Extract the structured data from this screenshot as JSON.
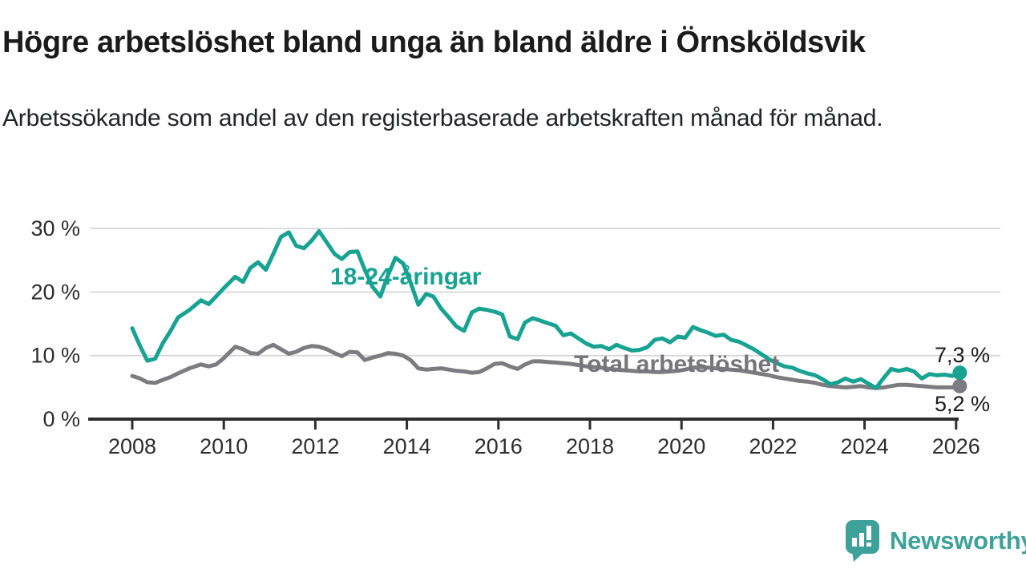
{
  "header": {
    "title": "Högre arbetslöshet bland unga än bland äldre i Örnsköldsvik",
    "subtitle": "Arbetssökande som andel av den registerbaserade arbetskraften månad för månad."
  },
  "chart_data": {
    "type": "line",
    "title": "Högre arbetslöshet bland unga än bland äldre i Örnsköldsvik",
    "subtitle": "Arbetssökande som andel av den registerbaserade arbetskraften månad för månad.",
    "unit": "%",
    "xlabel": "",
    "ylabel": "",
    "ylim": [
      0,
      30
    ],
    "xlim": [
      2008,
      2026.2
    ],
    "grid": "horizontal",
    "legend_position": "inline-labels-on-chart",
    "yticks": [
      {
        "value": 0,
        "label": "0 %"
      },
      {
        "value": 10,
        "label": "10 %"
      },
      {
        "value": 20,
        "label": "20 %"
      },
      {
        "value": 30,
        "label": "30 %"
      }
    ],
    "xticks": [
      {
        "value": 2008,
        "label": "2008"
      },
      {
        "value": 2010,
        "label": "2010"
      },
      {
        "value": 2012,
        "label": "2012"
      },
      {
        "value": 2014,
        "label": "2014"
      },
      {
        "value": 2016,
        "label": "2016"
      },
      {
        "value": 2018,
        "label": "2018"
      },
      {
        "value": 2020,
        "label": "2020"
      },
      {
        "value": 2022,
        "label": "2022"
      },
      {
        "value": 2024,
        "label": "2024"
      },
      {
        "value": 2026,
        "label": "2026"
      }
    ],
    "x": [
      2008.0,
      2008.17,
      2008.33,
      2008.5,
      2008.67,
      2008.83,
      2009.0,
      2009.25,
      2009.5,
      2009.67,
      2009.83,
      2010.0,
      2010.25,
      2010.42,
      2010.58,
      2010.75,
      2010.92,
      2011.08,
      2011.25,
      2011.42,
      2011.58,
      2011.75,
      2011.92,
      2012.08,
      2012.25,
      2012.42,
      2012.58,
      2012.75,
      2012.92,
      2013.08,
      2013.25,
      2013.42,
      2013.58,
      2013.75,
      2013.92,
      2014.08,
      2014.25,
      2014.42,
      2014.58,
      2014.75,
      2014.92,
      2015.08,
      2015.25,
      2015.42,
      2015.58,
      2015.75,
      2015.92,
      2016.08,
      2016.25,
      2016.42,
      2016.58,
      2016.75,
      2016.92,
      2017.08,
      2017.25,
      2017.42,
      2017.58,
      2017.75,
      2017.92,
      2018.08,
      2018.25,
      2018.42,
      2018.58,
      2018.75,
      2018.92,
      2019.08,
      2019.25,
      2019.42,
      2019.58,
      2019.75,
      2019.92,
      2020.08,
      2020.25,
      2020.42,
      2020.58,
      2020.75,
      2020.92,
      2021.08,
      2021.25,
      2021.42,
      2021.58,
      2021.75,
      2021.92,
      2022.08,
      2022.25,
      2022.42,
      2022.58,
      2022.75,
      2022.92,
      2023.08,
      2023.25,
      2023.42,
      2023.58,
      2023.75,
      2023.92,
      2024.08,
      2024.25,
      2024.42,
      2024.58,
      2024.75,
      2024.92,
      2025.08,
      2025.25,
      2025.42,
      2025.58,
      2025.75,
      2025.92,
      2026.08
    ],
    "series": [
      {
        "name": "18-24-åringar",
        "color": "#17a292",
        "end_label": "7,3 %",
        "end_value": 7.3,
        "values": [
          14.3,
          11.5,
          9.2,
          9.5,
          12.0,
          13.8,
          16.0,
          17.2,
          18.7,
          18.1,
          19.3,
          20.6,
          22.4,
          21.6,
          23.8,
          24.7,
          23.5,
          26.0,
          28.7,
          29.4,
          27.3,
          26.9,
          28.1,
          29.6,
          27.8,
          26.0,
          25.2,
          26.3,
          26.4,
          23.5,
          20.8,
          19.3,
          22.5,
          25.4,
          24.5,
          21.5,
          18.0,
          19.7,
          19.3,
          17.4,
          16.0,
          14.6,
          13.9,
          16.8,
          17.4,
          17.2,
          16.9,
          16.5,
          13.0,
          12.6,
          15.2,
          15.9,
          15.5,
          15.1,
          14.7,
          13.2,
          13.5,
          12.7,
          11.9,
          11.4,
          11.5,
          11.0,
          11.7,
          11.2,
          10.8,
          10.9,
          11.3,
          12.5,
          12.7,
          12.1,
          13.0,
          12.8,
          14.5,
          14.0,
          13.6,
          13.1,
          13.3,
          12.5,
          12.2,
          11.6,
          11.0,
          10.2,
          9.4,
          8.8,
          8.3,
          8.1,
          7.6,
          7.2,
          6.9,
          6.3,
          5.5,
          5.8,
          6.4,
          5.9,
          6.3,
          5.6,
          4.9,
          6.5,
          7.9,
          7.6,
          7.9,
          7.5,
          6.4,
          7.1,
          6.9,
          7.0,
          6.8,
          7.3
        ]
      },
      {
        "name": "Total arbetslöshet",
        "color": "#7c7c80",
        "end_label": "5,2 %",
        "end_value": 5.2,
        "values": [
          6.8,
          6.4,
          5.8,
          5.7,
          6.2,
          6.6,
          7.2,
          8.0,
          8.6,
          8.3,
          8.6,
          9.6,
          11.4,
          11.0,
          10.4,
          10.3,
          11.2,
          11.7,
          11.0,
          10.3,
          10.6,
          11.2,
          11.5,
          11.4,
          11.0,
          10.4,
          9.9,
          10.6,
          10.5,
          9.3,
          9.7,
          10.0,
          10.4,
          10.3,
          10.0,
          9.3,
          8.0,
          7.8,
          7.9,
          8.0,
          7.8,
          7.6,
          7.5,
          7.3,
          7.4,
          8.0,
          8.7,
          8.8,
          8.3,
          7.9,
          8.6,
          9.1,
          9.1,
          9.0,
          8.9,
          8.8,
          8.7,
          8.5,
          8.3,
          8.2,
          8.1,
          7.9,
          7.8,
          7.7,
          7.6,
          7.5,
          7.5,
          7.4,
          7.4,
          7.5,
          7.6,
          7.8,
          8.1,
          8.2,
          8.1,
          8.0,
          7.9,
          7.8,
          7.7,
          7.5,
          7.3,
          7.1,
          6.9,
          6.6,
          6.4,
          6.2,
          6.0,
          5.9,
          5.7,
          5.4,
          5.2,
          5.1,
          5.0,
          5.1,
          5.2,
          5.0,
          4.9,
          5.0,
          5.2,
          5.4,
          5.4,
          5.3,
          5.2,
          5.1,
          5.0,
          5.0,
          5.0,
          5.2
        ]
      }
    ]
  },
  "footer": {
    "brand": "Newsworthy",
    "brand_color": "#3ea19a"
  }
}
